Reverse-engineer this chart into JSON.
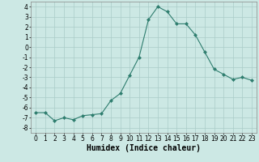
{
  "x": [
    0,
    1,
    2,
    3,
    4,
    5,
    6,
    7,
    8,
    9,
    10,
    11,
    12,
    13,
    14,
    15,
    16,
    17,
    18,
    19,
    20,
    21,
    22,
    23
  ],
  "y": [
    -6.5,
    -6.5,
    -7.3,
    -7.0,
    -7.2,
    -6.8,
    -6.7,
    -6.6,
    -5.3,
    -4.6,
    -2.8,
    -1.0,
    2.7,
    4.0,
    3.5,
    2.3,
    2.3,
    1.2,
    -0.5,
    -2.2,
    -2.7,
    -3.2,
    -3.0,
    -3.3
  ],
  "line_color": "#2e7d6e",
  "marker": "D",
  "marker_size": 2.0,
  "bg_color": "#cce8e4",
  "grid_color": "#aaccc8",
  "xlabel": "Humidex (Indice chaleur)",
  "ylim": [
    -8.5,
    4.5
  ],
  "xlim": [
    -0.5,
    23.5
  ],
  "yticks": [
    -8,
    -7,
    -6,
    -5,
    -4,
    -3,
    -2,
    -1,
    0,
    1,
    2,
    3,
    4
  ],
  "xticks": [
    0,
    1,
    2,
    3,
    4,
    5,
    6,
    7,
    8,
    9,
    10,
    11,
    12,
    13,
    14,
    15,
    16,
    17,
    18,
    19,
    20,
    21,
    22,
    23
  ],
  "tick_fontsize": 5.5,
  "xlabel_fontsize": 7.0,
  "linewidth": 0.8
}
